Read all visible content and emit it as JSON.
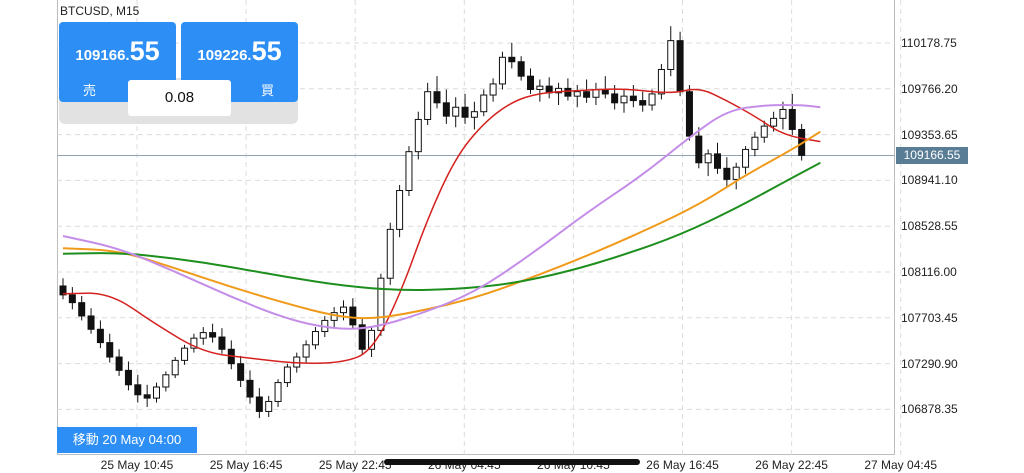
{
  "symbol": "BTCUSD, M15",
  "sell": {
    "price_small": "109166.",
    "price_big": "55",
    "label": "売"
  },
  "buy": {
    "price_small": "109226.",
    "price_big": "55",
    "label": "買"
  },
  "spread": "0.08",
  "current_price": "109166.55",
  "move_badge": "移動 20 May 04:00",
  "colors": {
    "accent": "#2d8ff5",
    "ma_red": "#d4211e",
    "ma_orange": "#f09a1a",
    "ma_green": "#1e8f1e",
    "ma_violet": "#c48ee8",
    "price_line": "#5a7d96"
  },
  "chart_data": {
    "type": "candlestick",
    "y_ticks": [
      "110178.75",
      "109766.20",
      "109353.65",
      "108941.10",
      "108528.55",
      "108116.00",
      "107703.45",
      "107290.90",
      "106878.35"
    ],
    "x_ticks": [
      "25 May 10:45",
      "25 May 16:45",
      "25 May 22:45",
      "26 May 04:45",
      "26 May 10:45",
      "26 May 16:45",
      "26 May 22:45",
      "27 May 04:45"
    ],
    "ylim": [
      106650,
      110550
    ],
    "grid": true,
    "candles": [
      [
        107990,
        108060,
        107870,
        107910
      ],
      [
        107910,
        107980,
        107780,
        107840
      ],
      [
        107840,
        107900,
        107680,
        107720
      ],
      [
        107720,
        107790,
        107560,
        107600
      ],
      [
        107600,
        107680,
        107430,
        107480
      ],
      [
        107480,
        107560,
        107300,
        107350
      ],
      [
        107350,
        107420,
        107180,
        107230
      ],
      [
        107230,
        107310,
        107050,
        107100
      ],
      [
        107100,
        107190,
        106940,
        107010
      ],
      [
        107010,
        107100,
        106900,
        106980
      ],
      [
        106980,
        107120,
        106940,
        107080
      ],
      [
        107080,
        107220,
        107040,
        107190
      ],
      [
        107190,
        107350,
        107160,
        107320
      ],
      [
        107320,
        107460,
        107280,
        107430
      ],
      [
        107430,
        107560,
        107390,
        107520
      ],
      [
        107520,
        107620,
        107460,
        107570
      ],
      [
        107570,
        107650,
        107480,
        107530
      ],
      [
        107530,
        107610,
        107380,
        107420
      ],
      [
        107420,
        107500,
        107240,
        107290
      ],
      [
        107290,
        107360,
        107080,
        107140
      ],
      [
        107140,
        107230,
        106930,
        106990
      ],
      [
        106990,
        107070,
        106800,
        106860
      ],
      [
        106860,
        107000,
        106810,
        106950
      ],
      [
        106950,
        107150,
        106900,
        107120
      ],
      [
        107120,
        107290,
        107080,
        107260
      ],
      [
        107260,
        107390,
        107210,
        107350
      ],
      [
        107350,
        107500,
        107300,
        107460
      ],
      [
        107460,
        107620,
        107420,
        107580
      ],
      [
        107580,
        107720,
        107530,
        107680
      ],
      [
        107680,
        107800,
        107620,
        107750
      ],
      [
        107750,
        107860,
        107680,
        107800
      ],
      [
        107800,
        107880,
        107600,
        107640
      ],
      [
        107640,
        107700,
        107380,
        107420
      ],
      [
        107420,
        107620,
        107350,
        107590
      ],
      [
        107590,
        108100,
        107540,
        108060
      ],
      [
        108060,
        108560,
        108000,
        108500
      ],
      [
        108500,
        108900,
        108430,
        108850
      ],
      [
        108850,
        109250,
        108800,
        109200
      ],
      [
        109200,
        109560,
        109130,
        109490
      ],
      [
        109490,
        109820,
        109440,
        109740
      ],
      [
        109740,
        109880,
        109590,
        109640
      ],
      [
        109640,
        109760,
        109450,
        109520
      ],
      [
        109520,
        109690,
        109420,
        109600
      ],
      [
        109600,
        109720,
        109450,
        109510
      ],
      [
        109510,
        109650,
        109400,
        109560
      ],
      [
        109560,
        109760,
        109520,
        109710
      ],
      [
        109710,
        109860,
        109650,
        109810
      ],
      [
        109810,
        110100,
        109760,
        110050
      ],
      [
        110050,
        110180,
        109950,
        110010
      ],
      [
        110010,
        110060,
        109840,
        109880
      ],
      [
        109880,
        109950,
        109720,
        109760
      ],
      [
        109760,
        109850,
        109650,
        109790
      ],
      [
        109790,
        109870,
        109680,
        109730
      ],
      [
        109730,
        109820,
        109620,
        109770
      ],
      [
        109770,
        109860,
        109660,
        109700
      ],
      [
        109700,
        109800,
        109600,
        109740
      ],
      [
        109740,
        109850,
        109640,
        109690
      ],
      [
        109690,
        109820,
        109620,
        109760
      ],
      [
        109760,
        109880,
        109680,
        109720
      ],
      [
        109720,
        109800,
        109580,
        109640
      ],
      [
        109640,
        109760,
        109550,
        109700
      ],
      [
        109700,
        109800,
        109600,
        109660
      ],
      [
        109660,
        109740,
        109560,
        109620
      ],
      [
        109620,
        109760,
        109570,
        109720
      ],
      [
        109720,
        109990,
        109670,
        109940
      ],
      [
        109940,
        110330,
        109880,
        110200
      ],
      [
        110200,
        110280,
        109700,
        109740
      ],
      [
        109740,
        109800,
        109300,
        109340
      ],
      [
        109340,
        109420,
        109050,
        109100
      ],
      [
        109100,
        109220,
        108980,
        109180
      ],
      [
        109180,
        109280,
        109000,
        109050
      ],
      [
        109050,
        109150,
        108880,
        108950
      ],
      [
        108950,
        109100,
        108860,
        109060
      ],
      [
        109060,
        109250,
        109000,
        109220
      ],
      [
        109220,
        109380,
        109160,
        109330
      ],
      [
        109330,
        109480,
        109280,
        109430
      ],
      [
        109430,
        109560,
        109380,
        109500
      ],
      [
        109500,
        109650,
        109400,
        109580
      ],
      [
        109580,
        109720,
        109350,
        109400
      ],
      [
        109400,
        109450,
        109120,
        109166.55
      ]
    ],
    "series": [
      {
        "color": "#d4211e",
        "values": [
          [
            0,
            107920
          ],
          [
            5,
            107930
          ],
          [
            10,
            107640
          ],
          [
            15,
            107390
          ],
          [
            20,
            107340
          ],
          [
            25,
            107290
          ],
          [
            30,
            107300
          ],
          [
            33,
            107400
          ],
          [
            36,
            107900
          ],
          [
            39,
            108600
          ],
          [
            42,
            109150
          ],
          [
            45,
            109460
          ],
          [
            48,
            109650
          ],
          [
            51,
            109730
          ],
          [
            55,
            109750
          ],
          [
            60,
            109770
          ],
          [
            65,
            109720
          ],
          [
            68,
            109780
          ],
          [
            71,
            109660
          ],
          [
            74,
            109520
          ],
          [
            77,
            109350
          ],
          [
            81,
            109290
          ]
        ]
      },
      {
        "color": "#f09a1a",
        "values": [
          [
            0,
            108330
          ],
          [
            6,
            108310
          ],
          [
            12,
            108150
          ],
          [
            18,
            107980
          ],
          [
            24,
            107830
          ],
          [
            29,
            107720
          ],
          [
            33,
            107690
          ],
          [
            38,
            107760
          ],
          [
            44,
            107880
          ],
          [
            50,
            108060
          ],
          [
            56,
            108260
          ],
          [
            62,
            108480
          ],
          [
            68,
            108720
          ],
          [
            73,
            108990
          ],
          [
            78,
            109220
          ],
          [
            81,
            109380
          ]
        ]
      },
      {
        "color": "#1e8f1e",
        "values": [
          [
            0,
            108280
          ],
          [
            6,
            108290
          ],
          [
            12,
            108240
          ],
          [
            18,
            108160
          ],
          [
            24,
            108070
          ],
          [
            30,
            107990
          ],
          [
            36,
            107950
          ],
          [
            42,
            107960
          ],
          [
            48,
            108010
          ],
          [
            54,
            108120
          ],
          [
            60,
            108270
          ],
          [
            66,
            108450
          ],
          [
            72,
            108690
          ],
          [
            77,
            108920
          ],
          [
            81,
            109100
          ]
        ]
      },
      {
        "color": "#c48ee8",
        "values": [
          [
            0,
            108440
          ],
          [
            6,
            108330
          ],
          [
            12,
            108120
          ],
          [
            18,
            107890
          ],
          [
            24,
            107690
          ],
          [
            29,
            107600
          ],
          [
            33,
            107610
          ],
          [
            38,
            107730
          ],
          [
            44,
            107930
          ],
          [
            50,
            108270
          ],
          [
            56,
            108650
          ],
          [
            62,
            108990
          ],
          [
            67,
            109330
          ],
          [
            71,
            109570
          ],
          [
            75,
            109620
          ],
          [
            79,
            109620
          ],
          [
            81,
            109600
          ]
        ]
      }
    ]
  }
}
